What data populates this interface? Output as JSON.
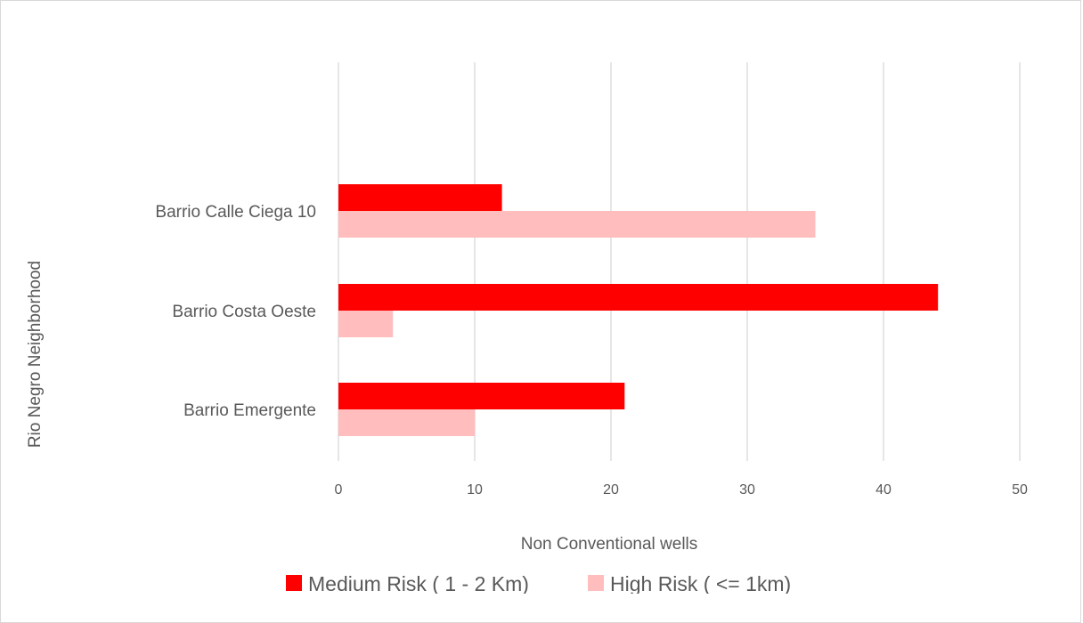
{
  "chart_data": {
    "type": "bar",
    "orientation": "horizontal",
    "title": "",
    "xlabel": "Non Conventional wells",
    "ylabel": "Rio Negro Neighborhood",
    "xlim": [
      0,
      50
    ],
    "x_ticks": [
      "0",
      "10",
      "20",
      "30",
      "40",
      "50"
    ],
    "categories": [
      "Barrio Calle Ciega 10",
      "Barrio Costa Oeste",
      "Barrio Emergente"
    ],
    "series": [
      {
        "name": "Medium Risk ( 1 - 2 Km)",
        "color": "#ff0000",
        "values": [
          12,
          44,
          21
        ]
      },
      {
        "name": "High Risk ( <= 1km)",
        "color": "#ffbdbd",
        "values": [
          35,
          4,
          10
        ]
      }
    ],
    "grid": "vertical",
    "legend_position": "bottom"
  }
}
